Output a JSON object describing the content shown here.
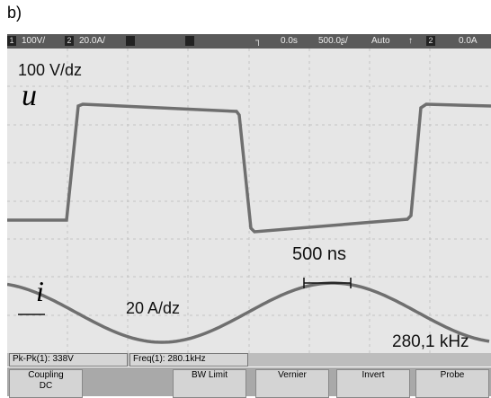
{
  "figure_label": "b)",
  "status_bar": {
    "ch1_box": "1",
    "ch1_scale": "100V/",
    "ch2_box": "2",
    "ch2_scale": "20.0A/",
    "delay": "0.0s",
    "timebase": "500.0ʂ/",
    "mode": "Auto",
    "trigger_source": "2",
    "trigger_level": "0.0A"
  },
  "annotations": {
    "voltage_scale": "100 V/dz",
    "voltage_symbol": "u",
    "time_scale": "500 ns",
    "current_symbol": "i",
    "current_scale": "20 A/dz",
    "frequency": "280,1 kHz"
  },
  "measurements": [
    "Pk-Pk(1): 338V",
    "Freq(1): 280.1kHz"
  ],
  "softkeys": [
    {
      "label": "Coupling",
      "value": "DC"
    },
    {
      "label": "BW Limit"
    },
    {
      "label": "Vernier"
    },
    {
      "label": "Invert"
    },
    {
      "label": "Probe"
    }
  ]
}
